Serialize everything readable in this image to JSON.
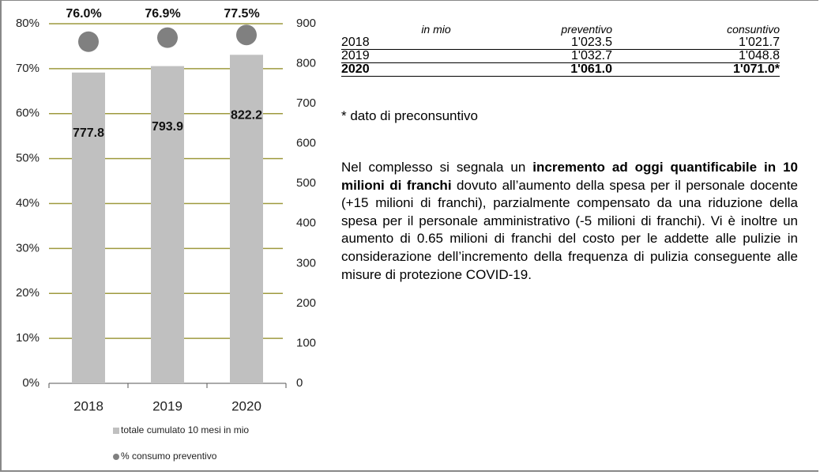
{
  "chart_data": {
    "type": "bar",
    "categories": [
      "2018",
      "2019",
      "2020"
    ],
    "series": [
      {
        "name": "totale cumulato 10 mesi in mio",
        "color": "#c0c0c0",
        "type": "bar",
        "axis": "y2",
        "values": [
          777.8,
          793.9,
          822.2
        ]
      },
      {
        "name": "% consumo preventivo",
        "color": "#808080",
        "type": "scatter",
        "axis": "y",
        "values": [
          76.0,
          76.9,
          77.5
        ],
        "value_labels": [
          "76.0%",
          "76.9%",
          "77.5%"
        ]
      }
    ],
    "ylim": [
      0,
      80
    ],
    "yticks": [
      {
        "value": 0,
        "label": "0%"
      },
      {
        "value": 10,
        "label": "10%"
      },
      {
        "value": 20,
        "label": "20%"
      },
      {
        "value": 30,
        "label": "30%"
      },
      {
        "value": 40,
        "label": "40%"
      },
      {
        "value": 50,
        "label": "50%"
      },
      {
        "value": 60,
        "label": "60%"
      },
      {
        "value": 70,
        "label": "70%"
      },
      {
        "value": 80,
        "label": "80%"
      }
    ],
    "y2lim": [
      0,
      900
    ],
    "y2ticks": [
      0,
      100,
      200,
      300,
      400,
      500,
      600,
      700,
      800,
      900
    ],
    "grid": true,
    "grid_color": "#9e9a3e"
  },
  "table": {
    "header": [
      "in mio",
      "preventivo",
      "consuntivo"
    ],
    "rows": [
      [
        "2018",
        "1'023.5",
        "1'021.7"
      ],
      [
        "2019",
        "1'032.7",
        "1'048.8"
      ],
      [
        "2020",
        "1'061.0",
        "1'071.0*"
      ]
    ]
  },
  "footnote": "* dato di preconsuntivo",
  "paragraph": [
    {
      "text": "Nel complesso si segnala un ",
      "bold": false
    },
    {
      "text": "incremento ad oggi quantificabile in 10 milioni di franchi",
      "bold": true
    },
    {
      "text": " dovuto all’aumento della spesa per il personale docente (+15 milioni di franchi), parzialmente compensato da una riduzione della spesa per il personale amministrativo (-5 milioni di franchi). Vi è inoltre un aumento di 0.65 milioni di franchi del costo per le addette alle pulizie in considerazione dell’incremento della frequenza di pulizia conseguente alle misure di protezione COVID-19.",
      "bold": false
    }
  ]
}
